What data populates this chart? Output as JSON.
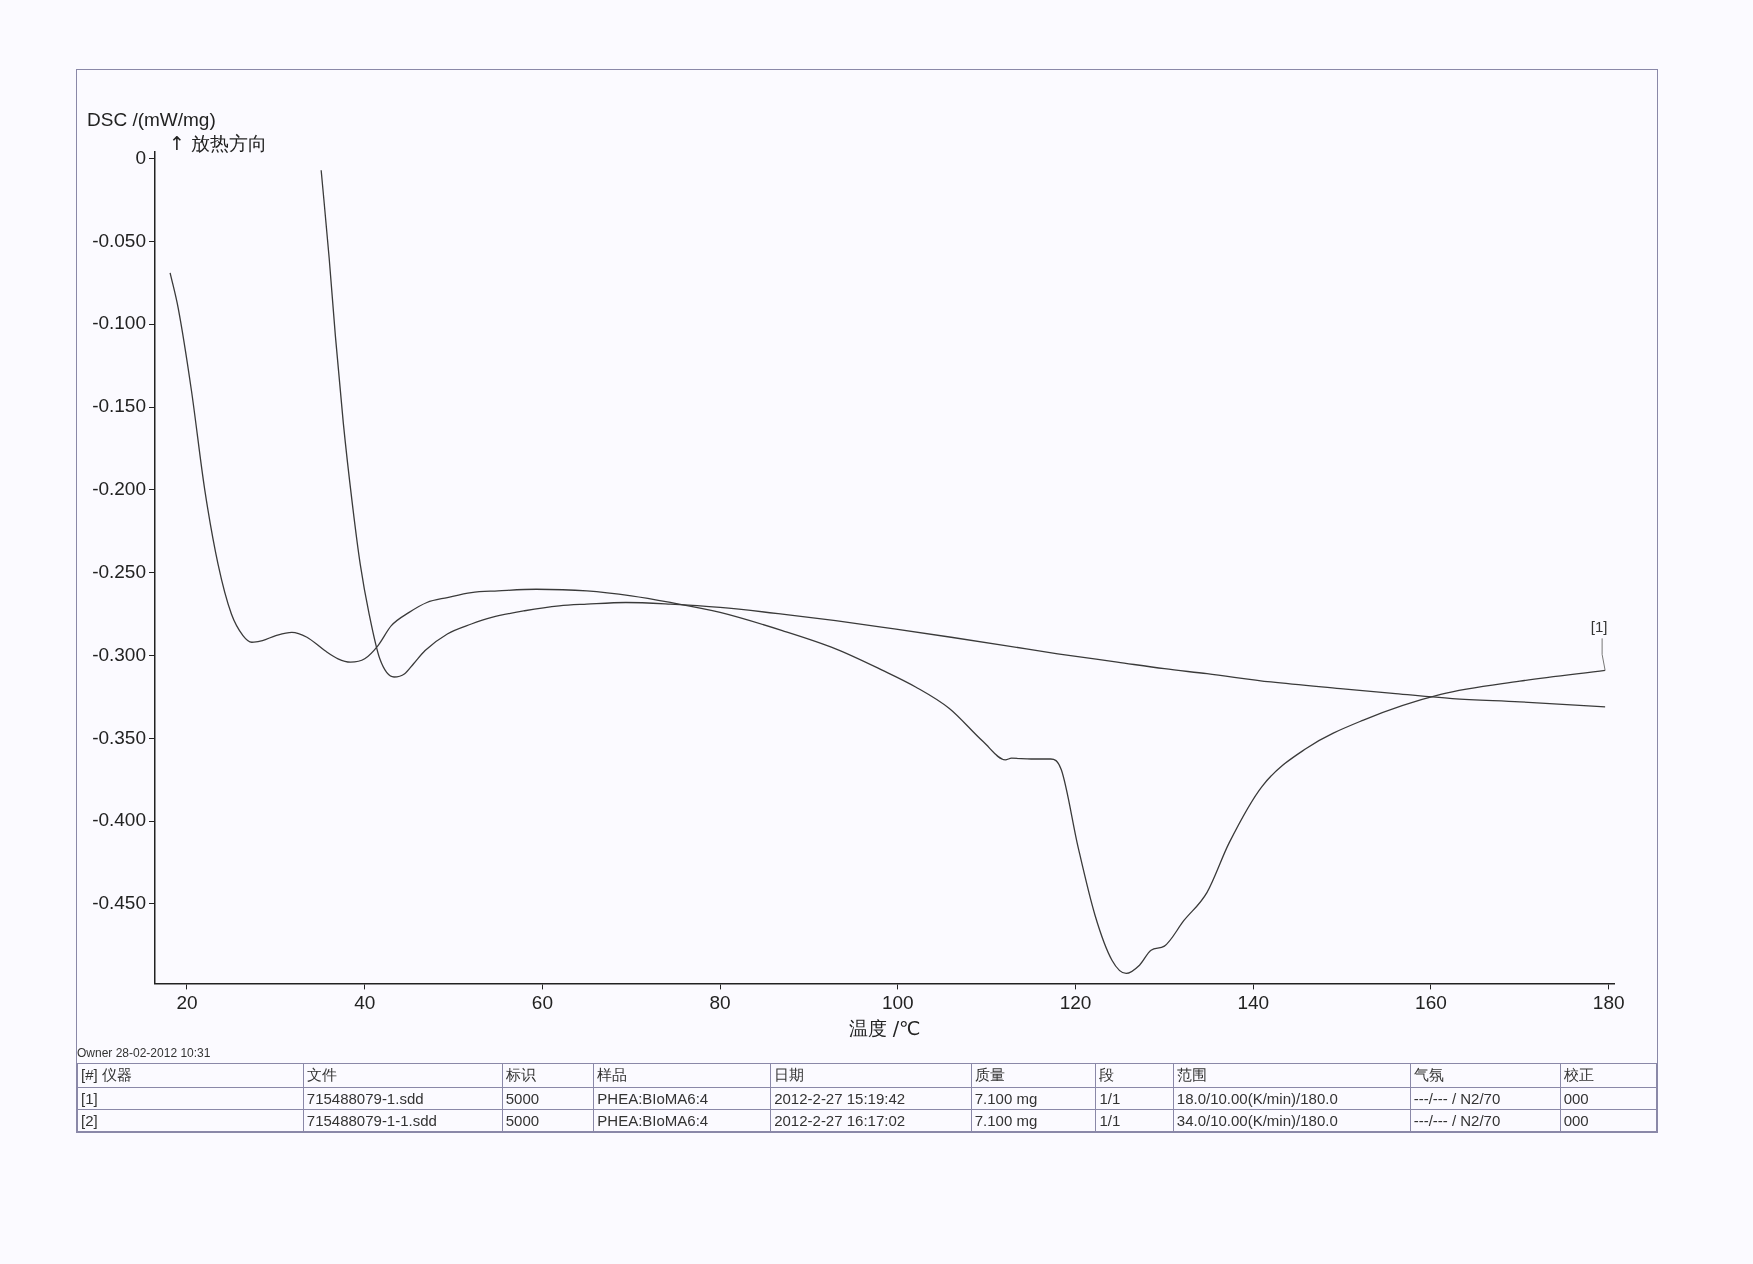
{
  "chart_data": {
    "type": "line",
    "xlabel": "温度 /℃",
    "ylabel": "DSC /(mW/mg)",
    "xlim": [
      16.4,
      180.6
    ],
    "ylim": [
      -0.498,
      0.004
    ],
    "xticks": [
      20,
      40,
      60,
      80,
      100,
      120,
      140,
      160,
      180
    ],
    "yticks": [
      {
        "value": 0,
        "label": "0"
      },
      {
        "value": -0.05,
        "label": "-0.050"
      },
      {
        "value": -0.1,
        "label": "-0.100"
      },
      {
        "value": -0.15,
        "label": "-0.150"
      },
      {
        "value": -0.2,
        "label": "-0.200"
      },
      {
        "value": -0.25,
        "label": "-0.250"
      },
      {
        "value": -0.3,
        "label": "-0.300"
      },
      {
        "value": -0.35,
        "label": "-0.350"
      },
      {
        "value": -0.4,
        "label": "-0.400"
      },
      {
        "value": -0.45,
        "label": "-0.450"
      }
    ],
    "marker": "none",
    "series": [
      {
        "name": "[1]",
        "color": "#3a3a3a",
        "x": [
          18.1,
          19,
          20.5,
          22,
          23.5,
          25,
          26.3,
          27.3,
          28.5,
          30,
          31.8,
          33.5,
          35.5,
          37,
          38.4,
          40,
          41.5,
          43,
          45,
          47,
          49.3,
          52,
          55,
          59.3,
          65,
          70,
          74.4,
          80,
          87,
          93,
          98.3,
          102,
          105.8,
          109.6,
          112.1,
          112.8,
          115,
          117.2,
          118.4,
          120.3,
          122.2,
          124.1,
          125.7,
          127.2,
          128.5,
          130,
          132.2,
          134.8,
          137.3,
          141,
          146,
          152.4,
          161.1,
          170,
          179.6
        ],
        "values": [
          -0.069,
          -0.09,
          -0.14,
          -0.2,
          -0.245,
          -0.275,
          -0.288,
          -0.292,
          -0.291,
          -0.288,
          -0.286,
          -0.289,
          -0.297,
          -0.302,
          -0.304,
          -0.302,
          -0.294,
          -0.282,
          -0.274,
          -0.268,
          -0.265,
          -0.262,
          -0.261,
          -0.26,
          -0.261,
          -0.264,
          -0.268,
          -0.274,
          -0.285,
          -0.296,
          -0.309,
          -0.319,
          -0.332,
          -0.352,
          -0.363,
          -0.362,
          -0.3625,
          -0.3625,
          -0.369,
          -0.416,
          -0.457,
          -0.484,
          -0.492,
          -0.487,
          -0.478,
          -0.4755,
          -0.46,
          -0.443,
          -0.413,
          -0.379,
          -0.356,
          -0.339,
          -0.3235,
          -0.3155,
          -0.309
        ]
      },
      {
        "color": "#3a3a3a",
        "x": [
          35.1,
          36,
          36.7,
          37.6,
          38.6,
          39.5,
          40.5,
          41.7,
          43.3,
          44.5,
          45.5,
          46.8,
          49.3,
          52,
          54.3,
          58,
          61.9,
          65,
          69.4,
          74.4,
          80,
          87,
          93,
          99.6,
          106,
          112.1,
          118,
          124.7,
          130,
          134.8,
          142,
          149.8,
          156,
          162.4,
          170,
          179.6
        ],
        "values": [
          -0.007,
          -0.06,
          -0.107,
          -0.16,
          -0.208,
          -0.245,
          -0.275,
          -0.302,
          -0.313,
          -0.311,
          -0.305,
          -0.297,
          -0.287,
          -0.281,
          -0.277,
          -0.273,
          -0.27,
          -0.269,
          -0.268,
          -0.269,
          -0.271,
          -0.275,
          -0.279,
          -0.284,
          -0.289,
          -0.294,
          -0.299,
          -0.304,
          -0.308,
          -0.311,
          -0.316,
          -0.32,
          -0.323,
          -0.326,
          -0.328,
          -0.331
        ]
      }
    ],
    "annotations": [
      "↑ 放热方向",
      "Owner   28-02-2012 10:31",
      "[#] 仪器",
      "文件",
      "标识",
      "样品",
      "日期",
      "质量",
      "段",
      "范围",
      "气氛",
      "校正",
      "[1]",
      "715488079-1.sdd",
      "5000",
      "PHEA:BIoMA6:4",
      "2012-2-27 15:19:42",
      "7.100 mg",
      "1/1",
      "18.0/10.00(K/min)/180.0",
      "---/--- / N2/70",
      "000",
      "[2]",
      "715488079-1-1.sdd",
      "5000",
      "PHEA:BIoMA6:4",
      "2012-2-27 16:17:02",
      "7.100 mg",
      "1/1",
      "34.0/10.00(K/min)/180.0",
      "---/--- / N2/70",
      "000"
    ]
  }
}
